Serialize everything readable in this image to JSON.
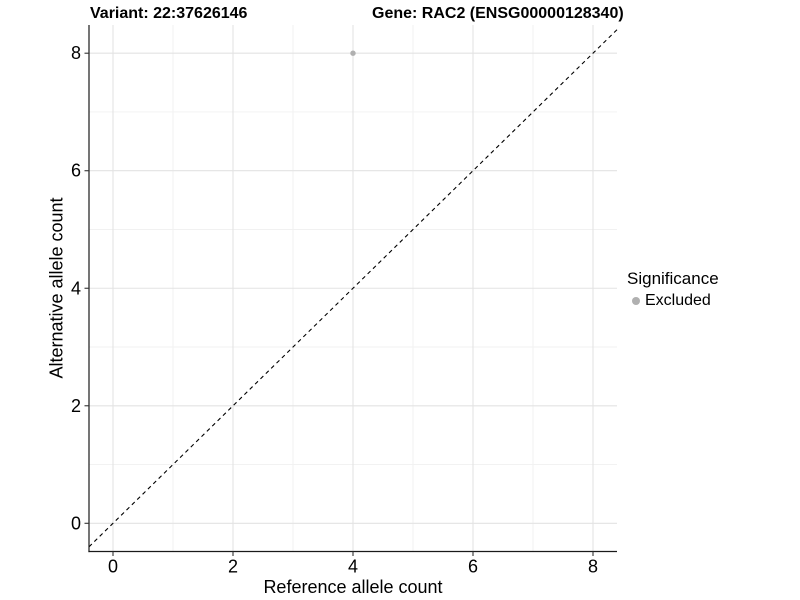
{
  "chart_data": {
    "type": "scatter",
    "title_left": "Variant: 22:37626146",
    "title_right": "Gene: RAC2 (ENSG00000128340)",
    "xlabel": "Reference allele count",
    "ylabel": "Alternative allele count",
    "xlim": [
      -0.4,
      8.4
    ],
    "ylim": [
      -0.48,
      8.48
    ],
    "xticks": [
      0,
      2,
      4,
      6,
      8
    ],
    "yticks": [
      0,
      2,
      4,
      6,
      8
    ],
    "x_minor_ticks": [
      1,
      3,
      5,
      7
    ],
    "y_minor_ticks": [
      1,
      3,
      5,
      7
    ],
    "grid": true,
    "identity_line": {
      "style": "dashed",
      "slope": 1,
      "intercept": 0,
      "color": "#000000"
    },
    "points": [
      {
        "x": 4,
        "y": 8,
        "significance": "Excluded"
      }
    ],
    "legend": {
      "title": "Significance",
      "position": "right",
      "items": [
        {
          "label": "Excluded",
          "color": "#b0b0b0"
        }
      ]
    },
    "colors": {
      "point_excluded": "#b0b0b0",
      "grid_major": "#e3e3e3",
      "grid_minor": "#f1f1f1",
      "axis_line": "#1a1a1a",
      "tick_mark": "#333333",
      "text": "#000000",
      "background": "#ffffff"
    }
  }
}
